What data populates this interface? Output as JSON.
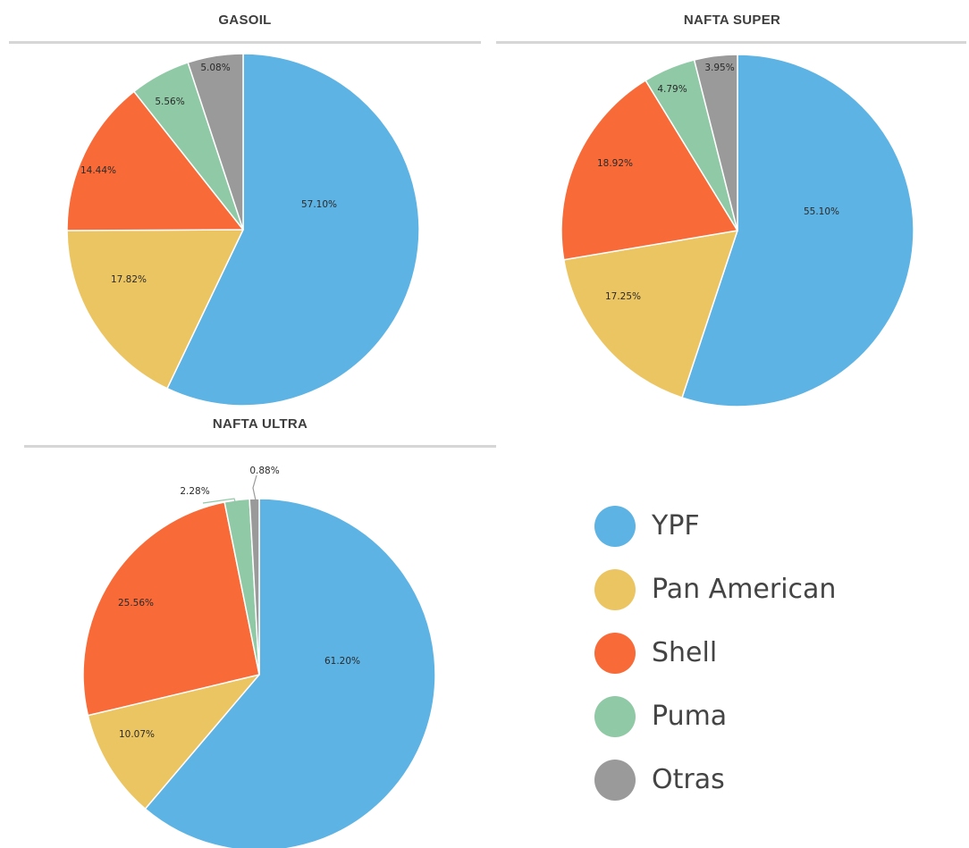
{
  "legend": [
    {
      "label": "YPF",
      "color": "#5db3e3"
    },
    {
      "label": "Pan American",
      "color": "#ecc563"
    },
    {
      "label": "Shell",
      "color": "#f86a38"
    },
    {
      "label": "Puma",
      "color": "#8fc9a5"
    },
    {
      "label": "Otras",
      "color": "#9a9a9a"
    }
  ],
  "chart_data": [
    {
      "type": "pie",
      "title": "GASOIL",
      "categories": [
        "YPF",
        "Pan American",
        "Shell",
        "Puma",
        "Otras"
      ],
      "values": [
        57.1,
        17.82,
        14.44,
        5.56,
        5.08
      ],
      "labels": [
        "57.10%",
        "17.82%",
        "14.44%",
        "5.56%",
        "5.08%"
      ]
    },
    {
      "type": "pie",
      "title": "NAFTA SUPER",
      "categories": [
        "YPF",
        "Pan American",
        "Shell",
        "Puma",
        "Otras"
      ],
      "values": [
        55.1,
        17.25,
        18.92,
        4.79,
        3.95
      ],
      "labels": [
        "55.10%",
        "17.25%",
        "18.92%",
        "4.79%",
        "3.95%"
      ]
    },
    {
      "type": "pie",
      "title": "NAFTA ULTRA",
      "categories": [
        "YPF",
        "Pan American",
        "Shell",
        "Puma",
        "Otras"
      ],
      "values": [
        61.2,
        10.07,
        25.56,
        2.28,
        0.88
      ],
      "labels": [
        "61.20%",
        "10.07%",
        "25.56%",
        "2.28%",
        "0.88%"
      ]
    }
  ]
}
